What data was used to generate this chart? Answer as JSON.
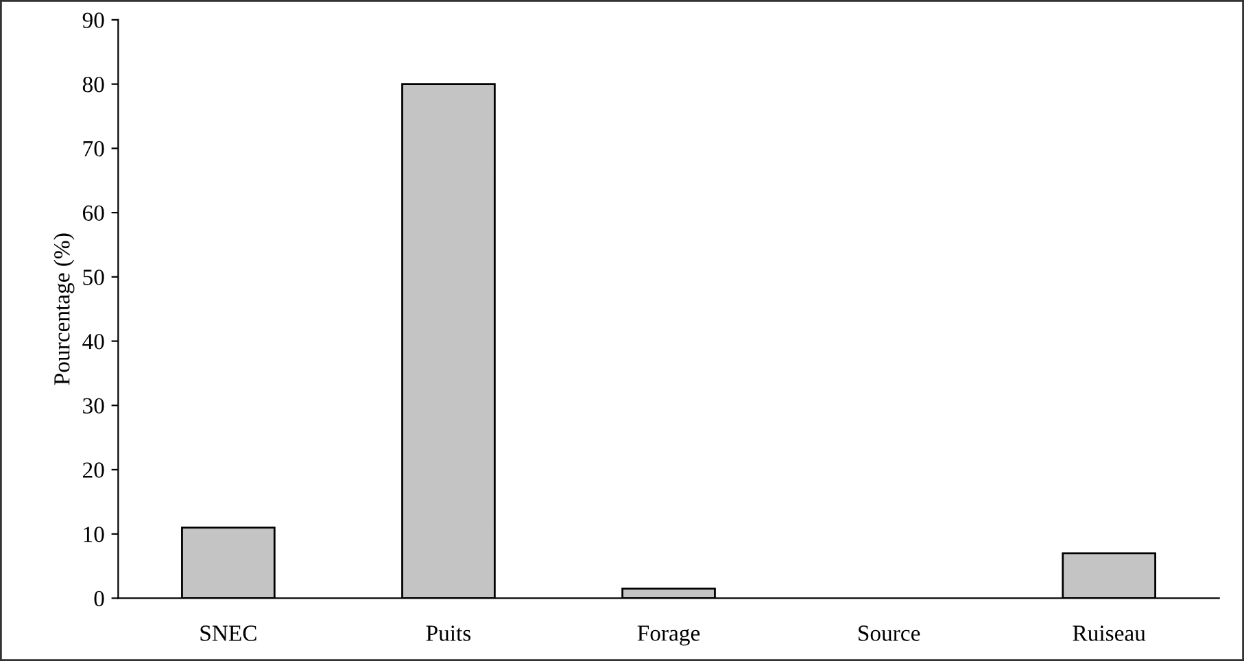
{
  "chart_data": {
    "type": "bar",
    "ylabel": "Pourcentage (%)",
    "categories": [
      "SNEC",
      "Puits",
      "Forage",
      "Source",
      "Ruiseau"
    ],
    "values": [
      11,
      80,
      1.5,
      0,
      7
    ],
    "color": "#c4c4c4",
    "ylim": [
      0,
      90
    ],
    "yticks": [
      0,
      10,
      20,
      30,
      40,
      50,
      60,
      70,
      80,
      90
    ],
    "grid": false,
    "legend": false
  }
}
